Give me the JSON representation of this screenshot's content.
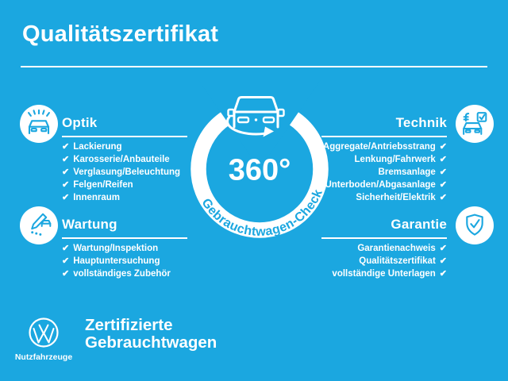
{
  "page": {
    "title": "Qualitätszertifikat"
  },
  "colors": {
    "background": "#1BA7E0",
    "foreground": "#FFFFFF"
  },
  "check_glyph": "✔",
  "center": {
    "degree_label": "360°",
    "ring_label": "Gebrauchtwagen-Check",
    "icon": "van-360-icon"
  },
  "sections": [
    {
      "id": "optik",
      "title": "Optik",
      "icon": "car-paint-icon",
      "side": "left",
      "items": [
        "Lackierung",
        "Karosserie/Anbauteile",
        "Verglasung/Beleuchtung",
        "Felgen/Reifen",
        "Innenraum"
      ]
    },
    {
      "id": "wartung",
      "title": "Wartung",
      "icon": "pencil-checklist-icon",
      "side": "left",
      "items": [
        "Wartung/Inspektion",
        "Hauptuntersuchung",
        "vollständiges Zubehör"
      ]
    },
    {
      "id": "technik",
      "title": "Technik",
      "icon": "car-inspection-icon",
      "side": "right",
      "items": [
        "Aggregate/Antriebsstrang",
        "Lenkung/Fahrwerk",
        "Bremsanlage",
        "Unterboden/Abgasanlage",
        "Sicherheit/Elektrik"
      ]
    },
    {
      "id": "garantie",
      "title": "Garantie",
      "icon": "shield-check-icon",
      "side": "right",
      "items": [
        "Garantienachweis",
        "Qualitätszertifikat",
        "vollständige Unterlagen"
      ]
    }
  ],
  "footer": {
    "brand": "Nutzfahrzeuge",
    "tagline_line1": "Zertifizierte",
    "tagline_line2": "Gebrauchtwagen"
  }
}
